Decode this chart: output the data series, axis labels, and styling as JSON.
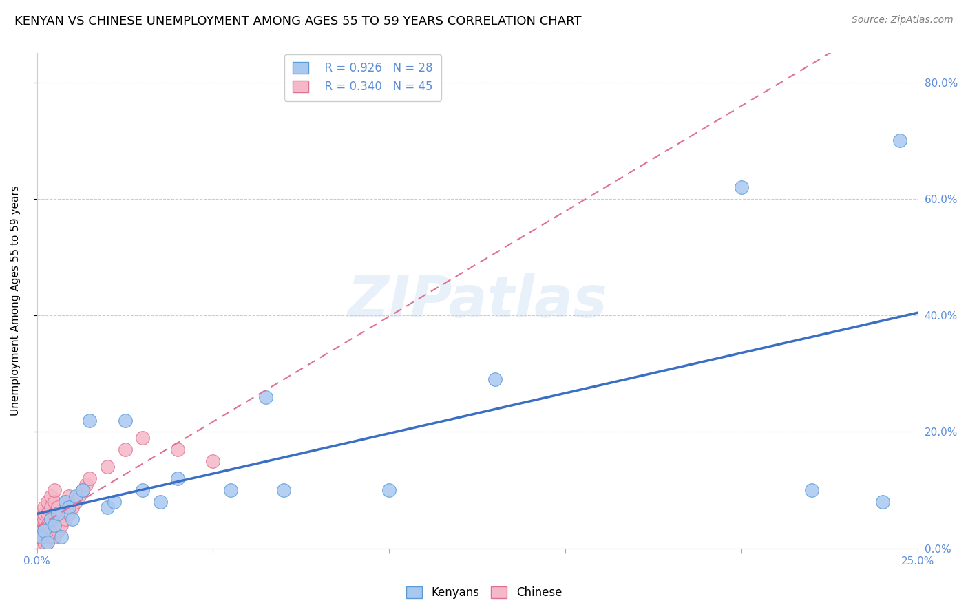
{
  "title": "KENYAN VS CHINESE UNEMPLOYMENT AMONG AGES 55 TO 59 YEARS CORRELATION CHART",
  "source": "Source: ZipAtlas.com",
  "ylabel": "Unemployment Among Ages 55 to 59 years",
  "watermark": "ZIPatlas",
  "legend_blue_r": "R = 0.926",
  "legend_blue_n": "N = 28",
  "legend_pink_r": "R = 0.340",
  "legend_pink_n": "N = 45",
  "blue_color": "#a8c8f0",
  "blue_edge_color": "#5b9bd5",
  "blue_line_color": "#3a6fc4",
  "pink_color": "#f5b8c8",
  "pink_edge_color": "#e07090",
  "pink_line_color": "#e07090",
  "tick_color": "#5b8dd9",
  "kenyan_x": [
    0.001,
    0.002,
    0.003,
    0.004,
    0.005,
    0.006,
    0.007,
    0.008,
    0.009,
    0.01,
    0.011,
    0.013,
    0.015,
    0.02,
    0.022,
    0.025,
    0.03,
    0.035,
    0.04,
    0.055,
    0.065,
    0.07,
    0.1,
    0.13,
    0.2,
    0.22,
    0.24,
    0.245
  ],
  "kenyan_y": [
    0.02,
    0.03,
    0.01,
    0.05,
    0.04,
    0.06,
    0.02,
    0.08,
    0.07,
    0.05,
    0.09,
    0.1,
    0.22,
    0.07,
    0.08,
    0.22,
    0.1,
    0.08,
    0.12,
    0.1,
    0.26,
    0.1,
    0.1,
    0.29,
    0.62,
    0.1,
    0.08,
    0.7
  ],
  "chinese_x": [
    0.001,
    0.001,
    0.001,
    0.001,
    0.002,
    0.002,
    0.002,
    0.002,
    0.002,
    0.002,
    0.003,
    0.003,
    0.003,
    0.003,
    0.003,
    0.004,
    0.004,
    0.004,
    0.004,
    0.004,
    0.005,
    0.005,
    0.005,
    0.005,
    0.005,
    0.006,
    0.006,
    0.006,
    0.007,
    0.007,
    0.008,
    0.008,
    0.009,
    0.009,
    0.01,
    0.011,
    0.012,
    0.013,
    0.014,
    0.015,
    0.02,
    0.025,
    0.03,
    0.04,
    0.05
  ],
  "chinese_y": [
    0.01,
    0.02,
    0.03,
    0.04,
    0.01,
    0.02,
    0.04,
    0.05,
    0.06,
    0.07,
    0.01,
    0.02,
    0.04,
    0.06,
    0.08,
    0.02,
    0.03,
    0.05,
    0.07,
    0.09,
    0.02,
    0.04,
    0.06,
    0.08,
    0.1,
    0.03,
    0.05,
    0.07,
    0.04,
    0.06,
    0.05,
    0.08,
    0.06,
    0.09,
    0.07,
    0.08,
    0.09,
    0.1,
    0.11,
    0.12,
    0.14,
    0.17,
    0.19,
    0.17,
    0.15
  ],
  "xlim": [
    0.0,
    0.25
  ],
  "ylim": [
    0.0,
    0.85
  ],
  "xtick_minor_positions": [
    0.05,
    0.1,
    0.15,
    0.2
  ],
  "ytick_positions": [
    0.0,
    0.2,
    0.4,
    0.6,
    0.8
  ],
  "title_fontsize": 13,
  "source_fontsize": 10,
  "axis_label_fontsize": 11,
  "tick_fontsize": 11,
  "legend_fontsize": 12
}
